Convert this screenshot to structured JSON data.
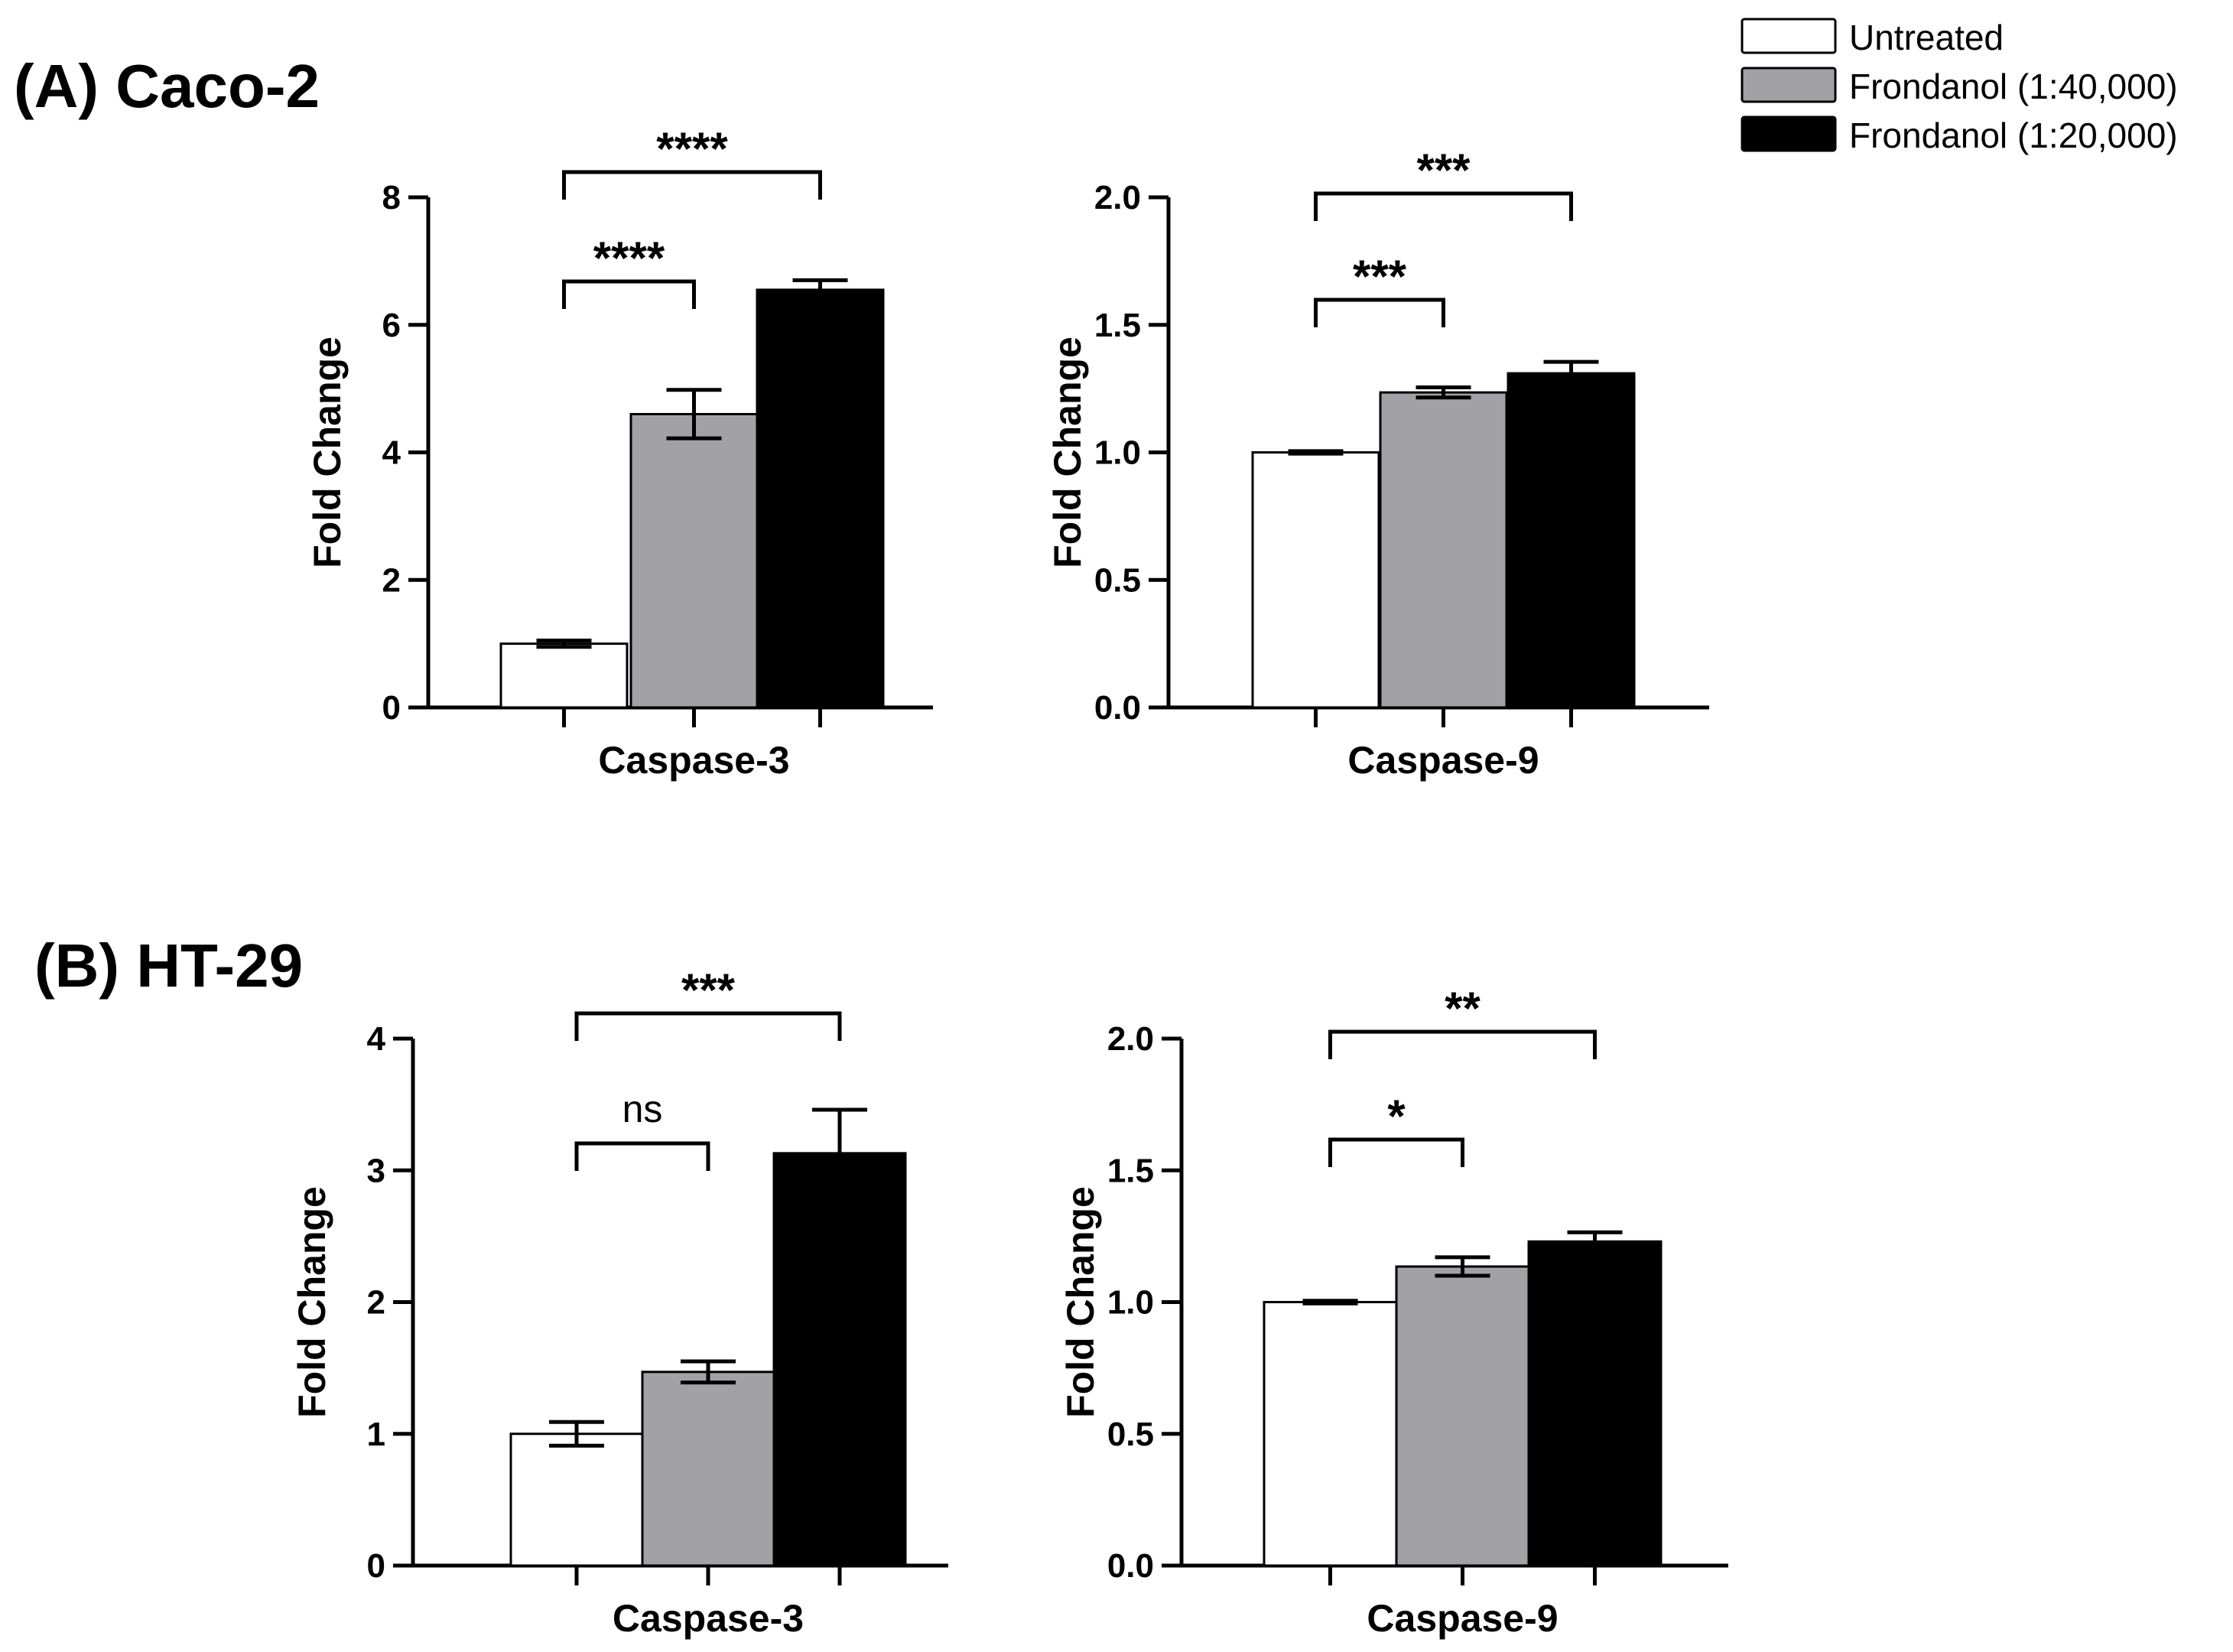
{
  "panels": [
    {
      "label": "(A) Caco-2"
    },
    {
      "label": "(B) HT-29"
    }
  ],
  "legend": [
    {
      "label": "Untreated",
      "color": "#ffffff"
    },
    {
      "label": "Frondanol (1:40,000)",
      "color": "#a2a2a6"
    },
    {
      "label": "Frondanol (1:20,000)",
      "color": "#000000"
    }
  ],
  "chart_data": [
    {
      "type": "bar",
      "panel": "(A) Caco-2",
      "category": "Caspase-3",
      "xlabel": "Caspase-3",
      "ylabel": "Fold Change",
      "ylim": [
        0,
        8
      ],
      "yticks": [
        "0",
        "2",
        "4",
        "6",
        "8"
      ],
      "series": [
        {
          "name": "Untreated",
          "value": 1.0,
          "error": 0.05
        },
        {
          "name": "Frondanol (1:40,000)",
          "value": 4.6,
          "error": 0.38
        },
        {
          "name": "Frondanol (1:20,000)",
          "value": 6.55,
          "error": 0.15
        }
      ],
      "significance": [
        {
          "from": 0,
          "to": 1,
          "label": "****"
        },
        {
          "from": 0,
          "to": 2,
          "label": "****"
        }
      ]
    },
    {
      "type": "bar",
      "panel": "(A) Caco-2",
      "category": "Caspase-9",
      "xlabel": "Caspase-9",
      "ylabel": "Fold Change",
      "ylim": [
        0,
        2.0
      ],
      "yticks": [
        "0.0",
        "0.5",
        "1.0",
        "1.5",
        "2.0"
      ],
      "series": [
        {
          "name": "Untreated",
          "value": 1.0,
          "error": 0.005
        },
        {
          "name": "Frondanol (1:40,000)",
          "value": 1.235,
          "error": 0.02
        },
        {
          "name": "Frondanol (1:20,000)",
          "value": 1.31,
          "error": 0.045
        }
      ],
      "significance": [
        {
          "from": 0,
          "to": 1,
          "label": "***"
        },
        {
          "from": 0,
          "to": 2,
          "label": "***"
        }
      ]
    },
    {
      "type": "bar",
      "panel": "(B) HT-29",
      "category": "Caspase-3",
      "xlabel": "Caspase-3",
      "ylabel": "Fold Change",
      "ylim": [
        0,
        4
      ],
      "yticks": [
        "0",
        "1",
        "2",
        "3",
        "4"
      ],
      "series": [
        {
          "name": "Untreated",
          "value": 1.0,
          "error": 0.09
        },
        {
          "name": "Frondanol (1:40,000)",
          "value": 1.47,
          "error": 0.08
        },
        {
          "name": "Frondanol (1:20,000)",
          "value": 3.13,
          "error": 0.33
        }
      ],
      "significance": [
        {
          "from": 0,
          "to": 1,
          "label": "ns"
        },
        {
          "from": 0,
          "to": 2,
          "label": "***"
        }
      ]
    },
    {
      "type": "bar",
      "panel": "(B) HT-29",
      "category": "Caspase-9",
      "xlabel": "Caspase-9",
      "ylabel": "Fold Change",
      "ylim": [
        0,
        2.0
      ],
      "yticks": [
        "0.0",
        "0.5",
        "1.0",
        "1.5",
        "2.0"
      ],
      "series": [
        {
          "name": "Untreated",
          "value": 1.0,
          "error": 0.005
        },
        {
          "name": "Frondanol (1:40,000)",
          "value": 1.135,
          "error": 0.035
        },
        {
          "name": "Frondanol (1:20,000)",
          "value": 1.23,
          "error": 0.035
        }
      ],
      "significance": [
        {
          "from": 0,
          "to": 1,
          "label": "*"
        },
        {
          "from": 0,
          "to": 2,
          "label": "**"
        }
      ]
    }
  ]
}
